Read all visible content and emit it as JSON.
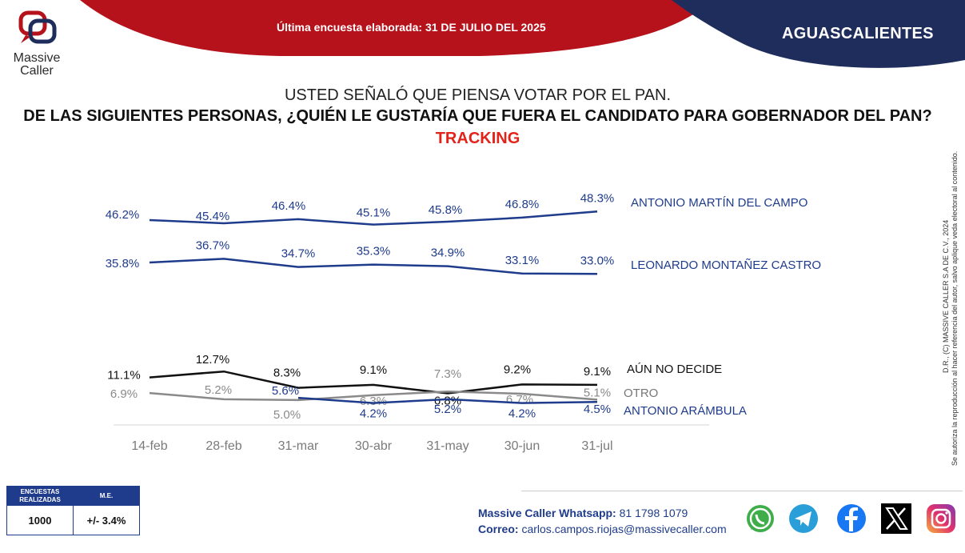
{
  "header": {
    "logo_line1": "Massive",
    "logo_line2": "Caller",
    "last_survey_label": "Última encuesta elaborada:",
    "last_survey_date": "31 DE JULIO DEL 2025",
    "region": "AGUASCALIENTES",
    "colors": {
      "red": "#b5121b",
      "navy": "#1f2d5c"
    }
  },
  "question": {
    "line1": "USTED SEÑALÓ QUE PIENSA VOTAR POR EL PAN.",
    "line2": "DE LAS SIGUIENTES PERSONAS,  ¿QUIÉN LE GUSTARÍA QUE FUERA EL CANDIDATO PARA GOBERNADOR DEL PAN?",
    "line3": "TRACKING"
  },
  "chart_data": {
    "type": "line",
    "categories": [
      "14-feb",
      "28-feb",
      "31-mar",
      "30-abr",
      "31-may",
      "30-jun",
      "31-jul"
    ],
    "series": [
      {
        "name": "ANTONIO MARTÍN DEL CAMPO",
        "values": [
          46.2,
          45.4,
          46.4,
          45.1,
          45.8,
          46.8,
          48.3
        ],
        "labels": [
          "46.2%",
          "45.4%",
          "46.4%",
          "45.1%",
          "45.8%",
          "46.8%",
          "48.3%"
        ],
        "color": "#1f3c8c"
      },
      {
        "name": "LEONARDO MONTAÑEZ CASTRO",
        "values": [
          35.8,
          36.7,
          34.7,
          35.3,
          34.9,
          33.1,
          33.0
        ],
        "labels": [
          "35.8%",
          "36.7%",
          "34.7%",
          "35.3%",
          "34.9%",
          "33.1%",
          "33.0%"
        ],
        "color": "#1f3c8c"
      },
      {
        "name": "AÚN NO DECIDE",
        "values": [
          11.1,
          12.7,
          8.3,
          9.1,
          6.8,
          9.2,
          9.1
        ],
        "labels": [
          "11.1%",
          "12.7%",
          "8.3%",
          "9.1%",
          "6.8%",
          "9.2%",
          "9.1%"
        ],
        "color": "#111111"
      },
      {
        "name": "OTRO",
        "values": [
          6.9,
          5.2,
          5.0,
          6.3,
          7.3,
          6.7,
          5.1
        ],
        "labels": [
          "6.9%",
          "5.2%",
          "5.0%",
          "6.3%",
          "7.3%",
          "6.7%",
          "5.1%"
        ],
        "color": "#8a8a8a"
      },
      {
        "name": "ANTONIO ARÁMBULA",
        "values": [
          null,
          null,
          5.6,
          4.2,
          5.2,
          4.2,
          4.5
        ],
        "labels": [
          null,
          null,
          "5.6%",
          "4.2%",
          "5.2%",
          "4.2%",
          "4.5%"
        ],
        "color": "#1f3c8c"
      }
    ]
  },
  "side_note": {
    "line1": "D.R., (C) MASSIVE CALLER S.A DE C.V., 2024",
    "line2": "Se autoriza la reproducción al hacer referencia del autor, salvo aplique veda electoral al contenido."
  },
  "stats": {
    "col1_header": "ENCUESTAS REALIZADAS",
    "col2_header": "M.E.",
    "col1_value": "1000",
    "col2_value": "+/- 3.4%"
  },
  "contact": {
    "whatsapp_label": "Massive Caller Whatsapp:",
    "whatsapp_number": "81 1798 1079",
    "email_label": "Correo:",
    "email": "carlos.campos.riojas@massivecaller.com"
  },
  "social_icons": [
    "whatsapp-icon",
    "telegram-icon",
    "facebook-icon",
    "x-icon",
    "instagram-icon"
  ]
}
